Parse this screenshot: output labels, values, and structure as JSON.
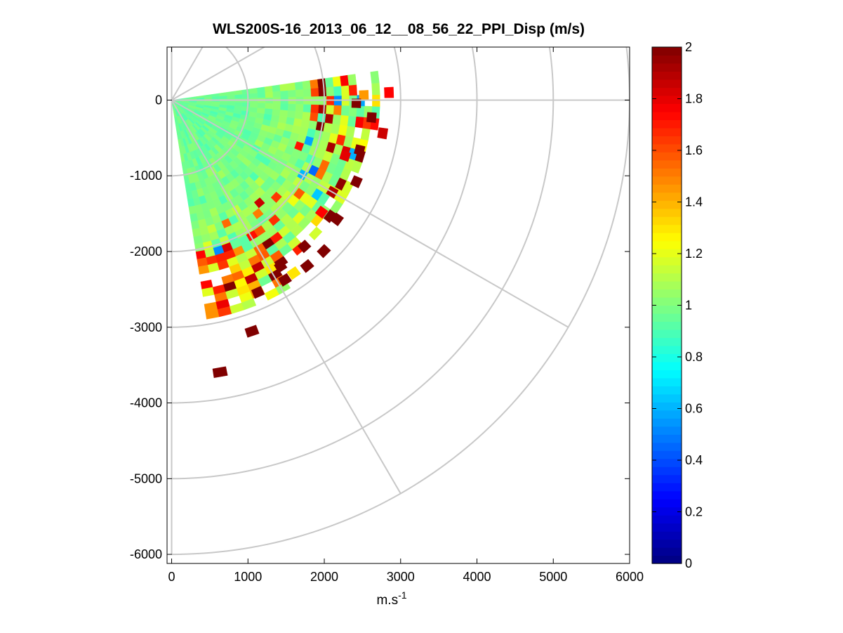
{
  "chart_data": {
    "type": "heatmap",
    "subtype": "polar-ppi-scan",
    "title": "WLS200S-16_2013_06_12__08_56_22_PPI_Disp (m/s)",
    "xlabel": "m.s",
    "xlabel_superscript": "-1",
    "ylabel": "",
    "xlim": [
      -60,
      6000
    ],
    "ylim": [
      -6120,
      700
    ],
    "xticks": [
      0,
      1000,
      2000,
      3000,
      4000,
      5000,
      6000
    ],
    "xtick_labels": [
      "0",
      "1000",
      "2000",
      "3000",
      "4000",
      "5000",
      "6000"
    ],
    "yticks": [
      0,
      -1000,
      -2000,
      -3000,
      -4000,
      -5000,
      -6000
    ],
    "ytick_labels": [
      "0",
      "-1000",
      "-2000",
      "-3000",
      "-4000",
      "-5000",
      "-6000"
    ],
    "polar_grid": {
      "ring_radii": [
        1000,
        2000,
        3000,
        4000,
        5000,
        6000
      ],
      "spoke_angles_deg": [
        0,
        -30,
        -60,
        30,
        60
      ],
      "grid": true
    },
    "scan": {
      "azimuth_range_deg": [
        -81,
        5
      ],
      "azimuth_step_deg": 3.3,
      "range_step_m": 100,
      "max_dense_range_m": 2900
    },
    "colorbar": {
      "colormap": "jet",
      "clim": [
        0,
        2
      ],
      "ticks": [
        0,
        0.2,
        0.4,
        0.6,
        0.8,
        1,
        1.2,
        1.4,
        1.6,
        1.8,
        2
      ],
      "tick_labels": [
        "0",
        "0.2",
        "0.4",
        "0.6",
        "0.8",
        "1",
        "1.2",
        "1.4",
        "1.6",
        "1.8",
        "2"
      ]
    },
    "outlier_cells": [
      {
        "angle": 2,
        "r": 2850,
        "v": 1.75
      },
      {
        "angle": 1.5,
        "r": 2520,
        "v": 1.45
      },
      {
        "angle": -1,
        "r": 2420,
        "v": 2
      },
      {
        "angle": -5,
        "r": 2630,
        "v": 2
      },
      {
        "angle": -9,
        "r": 2800,
        "v": 1.85
      },
      {
        "angle": -15,
        "r": 2550,
        "v": 2
      },
      {
        "angle": -18,
        "r": 2390,
        "v": 1.8
      },
      {
        "angle": -24,
        "r": 2650,
        "v": 2
      },
      {
        "angle": -30,
        "r": 2430,
        "v": 1.9
      },
      {
        "angle": -36,
        "r": 2680,
        "v": 2
      },
      {
        "angle": -37,
        "r": 2460,
        "v": 1.75
      },
      {
        "angle": -45,
        "r": 2820,
        "v": 2
      },
      {
        "angle": -48,
        "r": 2600,
        "v": 2
      },
      {
        "angle": -51,
        "r": 2820,
        "v": 2
      },
      {
        "angle": -55,
        "r": 2790,
        "v": 1.3
      },
      {
        "angle": -57,
        "r": 2620,
        "v": 2
      },
      {
        "angle": -58,
        "r": 2800,
        "v": 2
      },
      {
        "angle": -66,
        "r": 2780,
        "v": 2
      },
      {
        "angle": -71,
        "r": 3230,
        "v": 2
      },
      {
        "angle": -80,
        "r": 3650,
        "v": 2
      }
    ]
  }
}
